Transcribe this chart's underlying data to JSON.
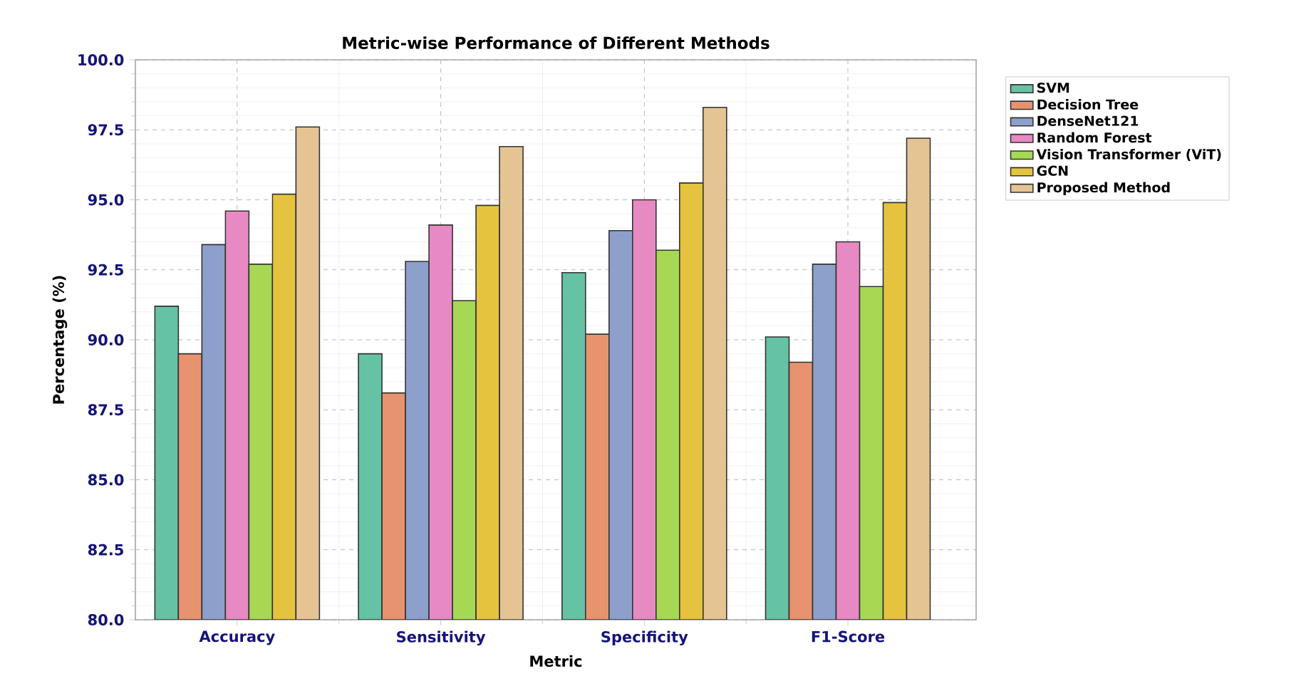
{
  "chart_data": {
    "type": "bar",
    "title": "Metric-wise Performance of Different Methods",
    "xlabel": "Metric",
    "ylabel": "Percentage (%)",
    "categories": [
      "Accuracy",
      "Sensitivity",
      "Specificity",
      "F1-Score"
    ],
    "series": [
      {
        "name": "SVM",
        "color": "#66c2a5",
        "values": [
          91.2,
          89.5,
          92.4,
          90.1
        ]
      },
      {
        "name": "Decision Tree",
        "color": "#e8936f",
        "values": [
          89.5,
          88.1,
          90.2,
          89.2
        ]
      },
      {
        "name": "DenseNet121",
        "color": "#8da0cb",
        "values": [
          93.4,
          92.8,
          93.9,
          92.7
        ]
      },
      {
        "name": "Random Forest",
        "color": "#e78ac3",
        "values": [
          94.6,
          94.1,
          95.0,
          93.5
        ]
      },
      {
        "name": "Vision Transformer (ViT)",
        "color": "#a6d854",
        "values": [
          92.7,
          91.4,
          93.2,
          91.9
        ]
      },
      {
        "name": "GCN",
        "color": "#e5c33f",
        "values": [
          95.2,
          94.8,
          95.6,
          94.9
        ]
      },
      {
        "name": "Proposed Method",
        "color": "#e5c494",
        "values": [
          97.6,
          96.9,
          98.3,
          97.2
        ]
      }
    ],
    "ylim": [
      80,
      100
    ],
    "yticks": [
      {
        "value": 80,
        "label": "80.0"
      },
      {
        "value": 82.5,
        "label": "82.5"
      },
      {
        "value": 85,
        "label": "85.0"
      },
      {
        "value": 87.5,
        "label": "87.5"
      },
      {
        "value": 90,
        "label": "90.0"
      },
      {
        "value": 92.5,
        "label": "92.5"
      },
      {
        "value": 95,
        "label": "95.0"
      },
      {
        "value": 97.5,
        "label": "97.5"
      },
      {
        "value": 100,
        "label": "100.0"
      }
    ],
    "grid": true,
    "legend": "top right"
  }
}
